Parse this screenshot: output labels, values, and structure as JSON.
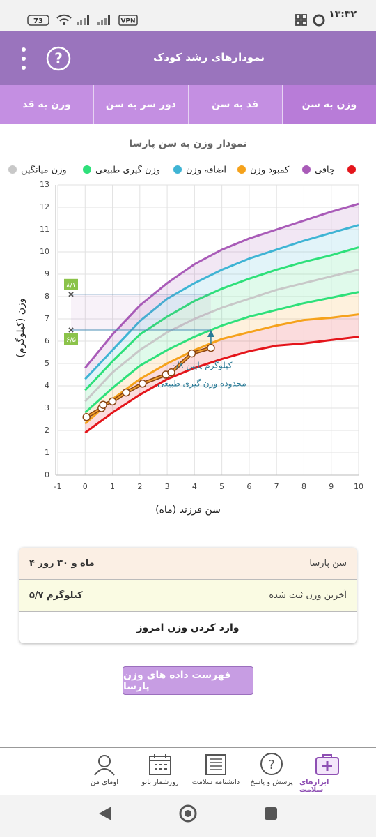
{
  "status_bar": {
    "time": "۱۳:۳۲",
    "battery": "73",
    "vpn": "VPN"
  },
  "app_bar": {
    "title": "نمودارهای رشد کودک"
  },
  "tabs": [
    "وزن به سن",
    "قد به سن",
    "دور سر به سن",
    "وزن به قد"
  ],
  "chart_data": {
    "type": "line",
    "title": "نمودار وزن به سن پارسا",
    "x_label": "سن فرزند (ماه)",
    "y_label": "وزن (کیلوگرم)",
    "xlim": [
      -1,
      10
    ],
    "ylim": [
      0,
      13
    ],
    "xticks": [
      -1,
      0,
      1,
      2,
      3,
      4,
      5,
      6,
      7,
      8,
      9,
      10
    ],
    "yticks": [
      0,
      1,
      2,
      3,
      4,
      5,
      6,
      7,
      8,
      9,
      10,
      11,
      12,
      13
    ],
    "grid": true,
    "x": [
      0,
      1,
      2,
      3,
      4,
      5,
      6,
      7,
      8,
      9,
      10
    ],
    "series": [
      {
        "name": "چاقی",
        "color": "#a95bb8",
        "values": [
          4.8,
          6.3,
          7.6,
          8.6,
          9.45,
          10.1,
          10.6,
          11.0,
          11.4,
          11.8,
          12.15
        ]
      },
      {
        "name": "اضافه وزن",
        "color": "#3fb4d4",
        "values": [
          4.3,
          5.6,
          6.9,
          7.9,
          8.6,
          9.2,
          9.7,
          10.1,
          10.5,
          10.85,
          11.2
        ]
      },
      {
        "name": "وزن گیری طبیعی",
        "color": "#2ee07a",
        "values": [
          3.8,
          5.1,
          6.3,
          7.1,
          7.8,
          8.35,
          8.8,
          9.2,
          9.55,
          9.85,
          10.2
        ]
      },
      {
        "name": "وزن میانگین",
        "color": "#c8c8c8",
        "values": [
          3.3,
          4.6,
          5.6,
          6.4,
          7.0,
          7.5,
          7.9,
          8.3,
          8.6,
          8.9,
          9.2
        ]
      },
      {
        "name": null,
        "color": "#2ee07a",
        "values": [
          2.8,
          3.9,
          4.9,
          5.6,
          6.2,
          6.7,
          7.1,
          7.4,
          7.7,
          7.95,
          8.2
        ]
      },
      {
        "name": "کمبود وزن",
        "color": "#f5a21b",
        "values": [
          2.3,
          3.4,
          4.3,
          5.0,
          5.6,
          6.1,
          6.4,
          6.7,
          6.95,
          7.05,
          7.2
        ]
      },
      {
        "name": null,
        "color": "#e4151b",
        "values": [
          1.9,
          2.8,
          3.6,
          4.3,
          4.8,
          5.2,
          5.55,
          5.8,
          5.9,
          6.05,
          6.2
        ]
      }
    ],
    "measurements": {
      "color": "#8b4513",
      "x": [
        0.05,
        0.6,
        0.66,
        1.0,
        1.5,
        2.1,
        2.95,
        3.15,
        3.9,
        4.6
      ],
      "values": [
        2.6,
        3.0,
        3.15,
        3.3,
        3.7,
        4.1,
        4.5,
        4.6,
        5.45,
        5.7
      ]
    },
    "range": {
      "low": 6.5,
      "high": 8.1,
      "low_label": "۶/۵",
      "high_label": "۸/۱",
      "color": "#8bc34a"
    },
    "notes": [
      "۰/۸ کیلوگرم پایین",
      "محدوده وزن گیری طبیعی"
    ]
  },
  "info": [
    {
      "label": "سن پارسا",
      "value": "۴ ماه و ۳۰ روز"
    },
    {
      "label": "آخرین وزن ثبت شده",
      "value": "۵/۷ کیلوگرم"
    }
  ],
  "action": "وارد کردن وزن امروز",
  "list_button": "فهرست داده های وزن پارسا",
  "bottom_nav": [
    "ابزارهای سلامت",
    "پرسش و پاسخ",
    "دانشنامه سلامت",
    "روزشمار بانو",
    "اومای من"
  ]
}
